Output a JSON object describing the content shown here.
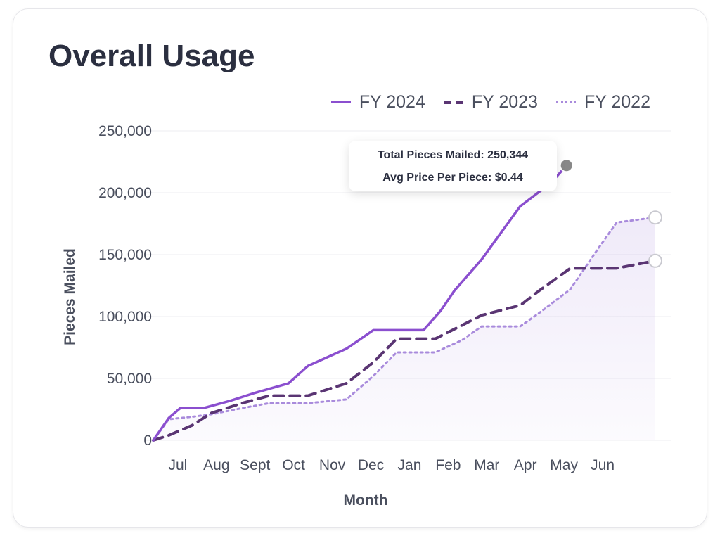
{
  "card": {
    "title": "Overall Usage"
  },
  "tooltip": {
    "total_label": "Total Pieces Mailed:",
    "total_value": "250,344",
    "avg_label": "Avg Price Per Piece:",
    "avg_value": "$0.44"
  },
  "chart_data": {
    "type": "line",
    "title": "Overall Usage",
    "xlabel": "Month",
    "ylabel": "Pieces Mailed",
    "ylim": [
      0,
      250000
    ],
    "yticks": [
      0,
      50000,
      100000,
      150000,
      200000,
      250000
    ],
    "ytick_labels": [
      "0",
      "50,000",
      "100,000",
      "150,000",
      "200,000",
      "250,000"
    ],
    "categories": [
      "Jul",
      "Aug",
      "Sept",
      "Oct",
      "Nov",
      "Dec",
      "Jan",
      "Feb",
      "Mar",
      "Apr",
      "May",
      "Jun"
    ],
    "grid": true,
    "legend": "top-right",
    "series": [
      {
        "name": "FY 2024",
        "color": "#8b4fcf",
        "style": "solid",
        "points": [
          [
            0,
            0
          ],
          [
            0.4,
            18000
          ],
          [
            0.7,
            26000
          ],
          [
            1.3,
            26000
          ],
          [
            2,
            32000
          ],
          [
            2.6,
            38000
          ],
          [
            3.5,
            46000
          ],
          [
            4,
            60000
          ],
          [
            5,
            74000
          ],
          [
            5.7,
            89000
          ],
          [
            6.3,
            89000
          ],
          [
            7,
            89000
          ],
          [
            7.45,
            105000
          ],
          [
            7.8,
            121000
          ],
          [
            8.5,
            146000
          ],
          [
            9.5,
            189000
          ],
          [
            10.3,
            208000
          ],
          [
            10.7,
            222000
          ]
        ]
      },
      {
        "name": "FY 2023",
        "color": "#5a3573",
        "style": "dashed",
        "points": [
          [
            0,
            0
          ],
          [
            0.4,
            4000
          ],
          [
            1,
            12000
          ],
          [
            1.5,
            22000
          ],
          [
            2.3,
            30000
          ],
          [
            3,
            36000
          ],
          [
            3.5,
            36000
          ],
          [
            4,
            36000
          ],
          [
            5,
            46000
          ],
          [
            5.7,
            63000
          ],
          [
            6.3,
            82000
          ],
          [
            7.3,
            82000
          ],
          [
            8,
            93000
          ],
          [
            8.5,
            101000
          ],
          [
            9.5,
            109000
          ],
          [
            10,
            121000
          ],
          [
            10.8,
            139000
          ],
          [
            11.5,
            139000
          ],
          [
            12,
            139000
          ],
          [
            13,
            145000
          ]
        ]
      },
      {
        "name": "FY 2022",
        "color": "#a98bdc",
        "style": "dotted",
        "points": [
          [
            0,
            0
          ],
          [
            0.4,
            17000
          ],
          [
            1,
            19000
          ],
          [
            1.5,
            21000
          ],
          [
            2.3,
            26000
          ],
          [
            3,
            30000
          ],
          [
            3.5,
            30000
          ],
          [
            4,
            30000
          ],
          [
            5,
            33000
          ],
          [
            5.7,
            52000
          ],
          [
            6.3,
            71000
          ],
          [
            7.3,
            71000
          ],
          [
            8,
            81000
          ],
          [
            8.5,
            92000
          ],
          [
            9.5,
            92000
          ],
          [
            10,
            103000
          ],
          [
            10.8,
            122000
          ],
          [
            11.5,
            154000
          ],
          [
            12,
            176000
          ],
          [
            13,
            180000
          ]
        ]
      }
    ],
    "highlight_points": [
      {
        "series": "FY 2024",
        "x": 10.7,
        "y": 222000,
        "color": "#888888"
      },
      {
        "series": "FY 2022",
        "x": 13,
        "y": 180000,
        "color": "#ffffff"
      },
      {
        "series": "FY 2023",
        "x": 13,
        "y": 145000,
        "color": "#ffffff"
      }
    ]
  }
}
